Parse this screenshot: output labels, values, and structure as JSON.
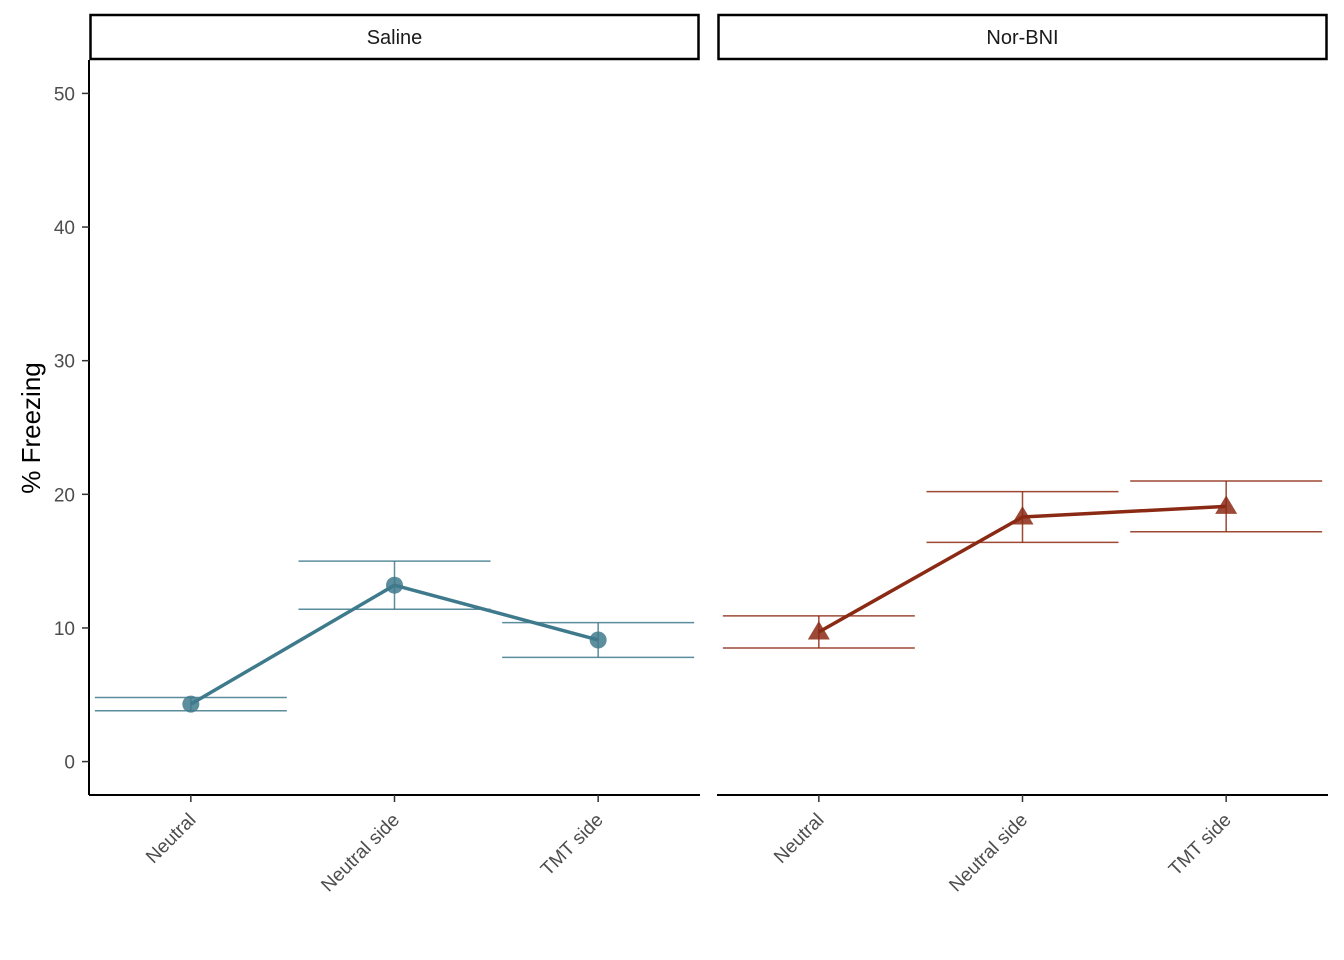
{
  "chart_data": {
    "type": "line",
    "ylabel": "% Freezing",
    "xlabel": "",
    "ylim": [
      -2.5,
      52.5
    ],
    "yticks": [
      0,
      10,
      20,
      30,
      40,
      50
    ],
    "categories": [
      "Neutral",
      "Neutral side",
      "TMT side"
    ],
    "grid": false,
    "panels": [
      {
        "label": "Saline",
        "marker": "circle",
        "color": "#3f7a8c",
        "values": [
          4.3,
          13.2,
          9.1
        ],
        "errors": [
          0.5,
          1.8,
          1.3
        ]
      },
      {
        "label": "Nor-BNI",
        "marker": "triangle",
        "color": "#8b2a14",
        "values": [
          9.7,
          18.3,
          19.1
        ],
        "errors": [
          1.2,
          1.9,
          1.9
        ]
      }
    ]
  }
}
